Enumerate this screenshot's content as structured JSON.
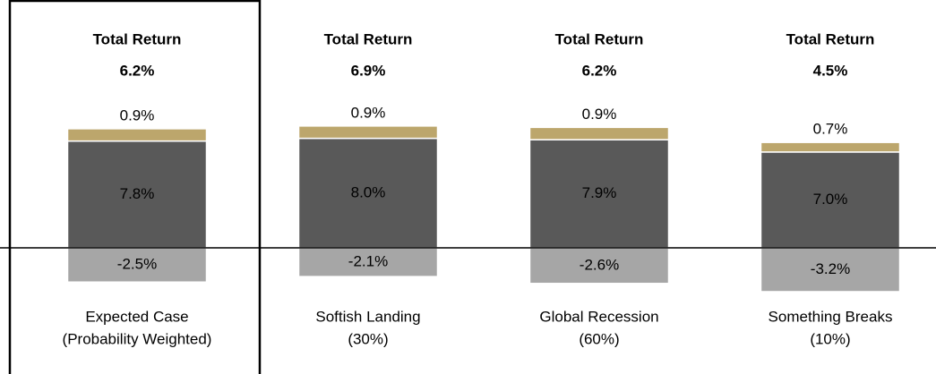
{
  "chart_data": {
    "type": "bar",
    "stacked": true,
    "categories": [
      [
        "Expected Case",
        "(Probability Weighted)"
      ],
      [
        "Softish Landing",
        "(30%)"
      ],
      [
        "Global Recession",
        "(60%)"
      ],
      [
        "Something Breaks",
        "(10%)"
      ]
    ],
    "totals": {
      "label": "Total Return",
      "values": [
        6.2,
        6.9,
        6.2,
        4.5
      ],
      "value_labels": [
        "6.2%",
        "6.9%",
        "6.2%",
        "4.5%"
      ]
    },
    "series": [
      {
        "color": "#a6a6a6",
        "values": [
          -2.5,
          -2.1,
          -2.6,
          -3.2
        ],
        "value_labels": [
          "-2.5%",
          "-2.1%",
          "-2.6%",
          "-3.2%"
        ],
        "label_color": "#ffffff"
      },
      {
        "color": "#595959",
        "values": [
          7.8,
          8.0,
          7.9,
          7.0
        ],
        "value_labels": [
          "7.8%",
          "8.0%",
          "7.9%",
          "7.0%"
        ],
        "label_color": "#ffffff"
      },
      {
        "color": "#bca66c",
        "values": [
          0.9,
          0.9,
          0.9,
          0.7
        ],
        "value_labels": [
          "0.9%",
          "0.9%",
          "0.9%",
          "0.7%"
        ],
        "label_color": "#000000",
        "label_position": "above"
      }
    ],
    "highlight": 0
  }
}
